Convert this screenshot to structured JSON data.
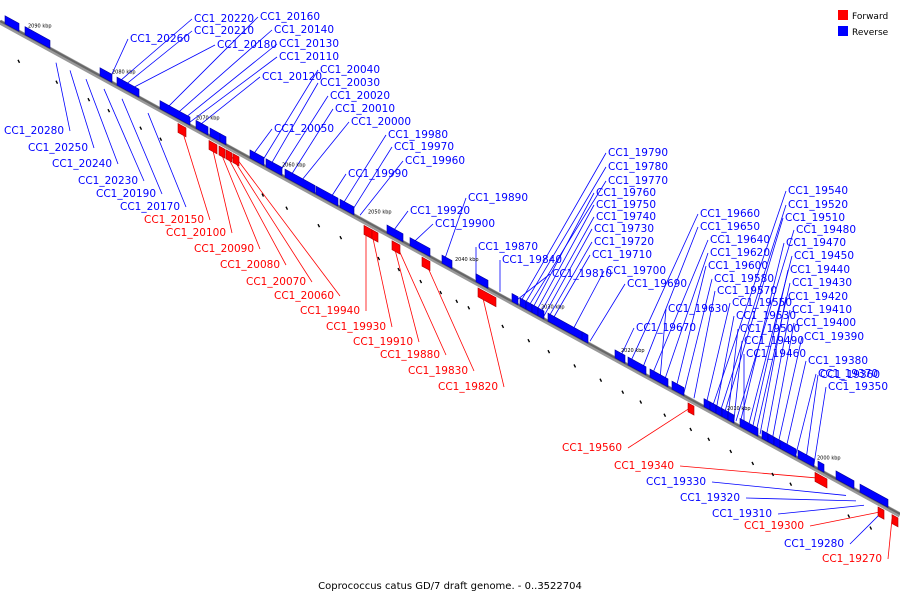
{
  "caption": "Coprococcus catus GD/7 draft genome. - 0..3522704",
  "legend": [
    {
      "label": "Forward",
      "color": "#ff0000"
    },
    {
      "label": "Reverse",
      "color": "#0000ff"
    }
  ],
  "colors": {
    "forward": "#ff0000",
    "reverse": "#0000ff",
    "forward_lines": "#ff0000",
    "reverse_lines": "#0000ff",
    "backbone": "#666666"
  },
  "ticks": [
    "2090 kbp",
    "2080 kbp",
    "2070 kbp",
    "2060 kbp",
    "2050 kbp",
    "2040 kbp",
    "2030 kbp",
    "2020 kbp",
    "2010 kbp",
    "2000 kbp"
  ],
  "genes_reverse_upper": [
    "CC1_20260",
    "CC1_20220",
    "CC1_20210",
    "CC1_20180",
    "CC1_20160",
    "CC1_20140",
    "CC1_20130",
    "CC1_20110",
    "CC1_20120",
    "CC1_20050",
    "CC1_20040",
    "CC1_20030",
    "CC1_20020",
    "CC1_20010",
    "CC1_20000",
    "CC1_19990",
    "CC1_19980",
    "CC1_19970",
    "CC1_19960",
    "CC1_19920",
    "CC1_19900",
    "CC1_19890",
    "CC1_19870",
    "CC1_19840",
    "CC1_19810",
    "CC1_19790",
    "CC1_19780",
    "CC1_19770",
    "CC1_19760",
    "CC1_19750",
    "CC1_19740",
    "CC1_19730",
    "CC1_19720",
    "CC1_19710",
    "CC1_19700",
    "CC1_19690",
    "CC1_19670",
    "CC1_19660",
    "CC1_19650",
    "CC1_19640",
    "CC1_19630",
    "CC1_19620",
    "CC1_19600",
    "CC1_19580",
    "CC1_19570",
    "CC1_19550",
    "CC1_19540",
    "CC1_19530",
    "CC1_19520",
    "CC1_19510",
    "CC1_19500",
    "CC1_19490",
    "CC1_19480",
    "CC1_19470",
    "CC1_19460",
    "CC1_19450",
    "CC1_19440",
    "CC1_19430",
    "CC1_19420",
    "CC1_19410",
    "CC1_19400",
    "CC1_19390",
    "CC1_19380",
    "CC1_19370",
    "CC1_19360",
    "CC1_19350"
  ],
  "genes_reverse_lower": [
    "CC1_20280",
    "CC1_20250",
    "CC1_20240",
    "CC1_20230",
    "CC1_20190",
    "CC1_20170",
    "CC1_19330",
    "CC1_19320",
    "CC1_19310",
    "CC1_19280"
  ],
  "genes_forward": [
    "CC1_20150",
    "CC1_20100",
    "CC1_20090",
    "CC1_20080",
    "CC1_20070",
    "CC1_20060",
    "CC1_19940",
    "CC1_19930",
    "CC1_19910",
    "CC1_19880",
    "CC1_19830",
    "CC1_19820",
    "CC1_19560",
    "CC1_19340",
    "CC1_19300",
    "CC1_19270"
  ]
}
